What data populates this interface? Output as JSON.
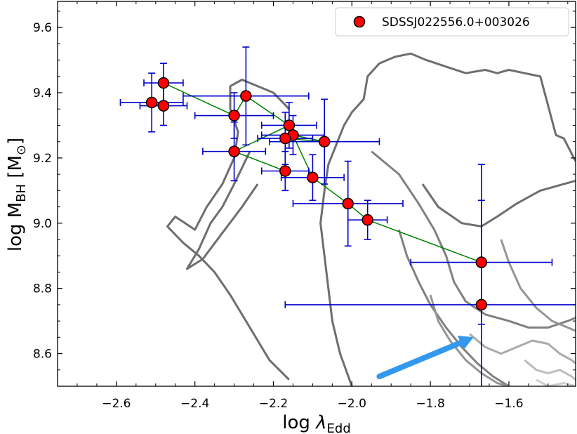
{
  "chart_data": {
    "type": "scatter",
    "xlabel": "log λEdd",
    "ylabel": "log MBH [M⊙]",
    "xlim": [
      -2.75,
      -1.43
    ],
    "ylim": [
      8.5,
      9.68
    ],
    "x_ticks": [
      -2.6,
      -2.4,
      -2.2,
      -2.0,
      -1.8,
      -1.6
    ],
    "x_tick_labels": [
      "−2.6",
      "−2.4",
      "−2.2",
      "−2.0",
      "−1.8",
      "−1.6"
    ],
    "y_ticks": [
      8.6,
      8.8,
      9.0,
      9.2,
      9.4,
      9.6
    ],
    "y_tick_labels": [
      "8.6",
      "8.8",
      "9.0",
      "9.2",
      "9.4",
      "9.6"
    ],
    "legend": {
      "label": "SDSSJ022556.0+003026",
      "position": "top-right"
    },
    "series": [
      {
        "name": "SDSSJ022556.0+003026",
        "marker_color": "#ff0000",
        "errorbar_color": "#0000cc",
        "points": [
          {
            "x": -2.51,
            "y": 9.37,
            "xerr": [
              0.08,
              0.08
            ],
            "yerr": [
              0.09,
              0.09
            ]
          },
          {
            "x": -2.48,
            "y": 9.43,
            "xerr": [
              0.05,
              0.05
            ],
            "yerr": [
              0.06,
              0.06
            ]
          },
          {
            "x": -2.48,
            "y": 9.36,
            "xerr": [
              0.06,
              0.06
            ],
            "yerr": [
              0.06,
              0.06
            ]
          },
          {
            "x": -2.27,
            "y": 9.39,
            "xerr": [
              0.16,
              0.16
            ],
            "yerr": [
              0.15,
              0.15
            ]
          },
          {
            "x": -2.3,
            "y": 9.33,
            "xerr": [
              0.1,
              0.1
            ],
            "yerr": [
              0.07,
              0.07
            ]
          },
          {
            "x": -2.3,
            "y": 9.22,
            "xerr": [
              0.08,
              0.08
            ],
            "yerr": [
              0.09,
              0.09
            ]
          },
          {
            "x": -2.16,
            "y": 9.3,
            "xerr": [
              0.07,
              0.07
            ],
            "yerr": [
              0.07,
              0.07
            ]
          },
          {
            "x": -2.15,
            "y": 9.27,
            "xerr": [
              0.08,
              0.08
            ],
            "yerr": [
              0.06,
              0.06
            ]
          },
          {
            "x": -2.17,
            "y": 9.26,
            "xerr": [
              0.07,
              0.07
            ],
            "yerr": [
              0.08,
              0.08
            ]
          },
          {
            "x": -2.07,
            "y": 9.25,
            "xerr": [
              0.14,
              0.14
            ],
            "yerr": [
              0.13,
              0.13
            ]
          },
          {
            "x": -2.17,
            "y": 9.16,
            "xerr": [
              0.06,
              0.06
            ],
            "yerr": [
              0.06,
              0.06
            ]
          },
          {
            "x": -2.1,
            "y": 9.14,
            "xerr": [
              0.08,
              0.08
            ],
            "yerr": [
              0.07,
              0.07
            ]
          },
          {
            "x": -2.01,
            "y": 9.06,
            "xerr": [
              0.14,
              0.14
            ],
            "yerr": [
              0.13,
              0.13
            ]
          },
          {
            "x": -1.96,
            "y": 9.01,
            "xerr": [
              0.05,
              0.05
            ],
            "yerr": [
              0.06,
              0.06
            ]
          },
          {
            "x": -1.67,
            "y": 8.88,
            "xerr": [
              0.18,
              0.18
            ],
            "yerr": [
              0.19,
              0.19
            ]
          },
          {
            "x": -1.67,
            "y": 8.75,
            "xerr": [
              0.5,
              0.5
            ],
            "yerr": [
              0.43,
              0.43
            ]
          }
        ],
        "connecting_lines": {
          "color": "#008000",
          "order": [
            0,
            2,
            1,
            4,
            3,
            6,
            5,
            10,
            8,
            9,
            7,
            11,
            12,
            13,
            14
          ]
        }
      }
    ],
    "arrow": {
      "from": [
        -1.93,
        8.53
      ],
      "to": [
        -1.69,
        8.65
      ],
      "color": "#3399ee"
    },
    "contours": {
      "colors": [
        "#6e6e6e",
        "#808080",
        "#959595",
        "#aaaaaa",
        "#bdbdbd",
        "#cfcfcf"
      ],
      "polylines": [
        {
          "level": 0,
          "points": [
            [
              -1.43,
              9.19
            ],
            [
              -1.46,
              9.26
            ],
            [
              -1.48,
              9.27
            ],
            [
              -1.5,
              9.36
            ],
            [
              -1.52,
              9.45
            ],
            [
              -1.56,
              9.46
            ],
            [
              -1.6,
              9.47
            ],
            [
              -1.63,
              9.46
            ],
            [
              -1.66,
              9.47
            ],
            [
              -1.71,
              9.46
            ],
            [
              -1.76,
              9.48
            ],
            [
              -1.81,
              9.5
            ],
            [
              -1.85,
              9.52
            ],
            [
              -1.89,
              9.51
            ],
            [
              -1.93,
              9.49
            ],
            [
              -1.96,
              9.45
            ],
            [
              -1.97,
              9.38
            ],
            [
              -2.0,
              9.34
            ],
            [
              -2.02,
              9.3
            ],
            [
              -2.04,
              9.24
            ],
            [
              -2.06,
              9.18
            ],
            [
              -2.07,
              9.1
            ],
            [
              -2.08,
              9.0
            ],
            [
              -2.07,
              8.9
            ],
            [
              -2.06,
              8.8
            ],
            [
              -2.05,
              8.7
            ],
            [
              -2.03,
              8.6
            ],
            [
              -2.0,
              8.5
            ]
          ]
        },
        {
          "level": 0,
          "points": [
            [
              -2.16,
              9.35
            ],
            [
              -2.2,
              9.4
            ],
            [
              -2.24,
              9.42
            ],
            [
              -2.28,
              9.44
            ],
            [
              -2.31,
              9.42
            ],
            [
              -2.31,
              9.35
            ],
            [
              -2.29,
              9.28
            ],
            [
              -2.3,
              9.2
            ],
            [
              -2.33,
              9.12
            ],
            [
              -2.37,
              9.05
            ],
            [
              -2.4,
              8.98
            ],
            [
              -2.45,
              9.02
            ],
            [
              -2.47,
              8.99
            ],
            [
              -2.43,
              8.94
            ],
            [
              -2.39,
              8.9
            ],
            [
              -2.35,
              8.85
            ],
            [
              -2.31,
              8.78
            ],
            [
              -2.26,
              8.68
            ],
            [
              -2.21,
              8.58
            ],
            [
              -2.16,
              8.52
            ]
          ]
        },
        {
          "level": 0,
          "points": [
            [
              -2.26,
              9.22
            ],
            [
              -2.3,
              9.12
            ],
            [
              -2.33,
              9.05
            ],
            [
              -2.36,
              9.0
            ],
            [
              -2.39,
              8.92
            ],
            [
              -2.42,
              8.86
            ],
            [
              -2.38,
              8.89
            ],
            [
              -2.33,
              8.97
            ],
            [
              -2.28,
              9.05
            ],
            [
              -2.24,
              9.12
            ]
          ]
        },
        {
          "level": 0,
          "points": [
            [
              -1.82,
              9.12
            ],
            [
              -1.78,
              9.05
            ],
            [
              -1.72,
              9.0
            ],
            [
              -1.67,
              8.99
            ],
            [
              -1.63,
              9.02
            ],
            [
              -1.58,
              9.06
            ],
            [
              -1.52,
              9.1
            ],
            [
              -1.46,
              9.12
            ],
            [
              -1.43,
              9.13
            ]
          ]
        },
        {
          "level": 1,
          "points": [
            [
              -1.95,
              9.22
            ],
            [
              -1.88,
              9.15
            ],
            [
              -1.83,
              9.06
            ],
            [
              -1.79,
              8.98
            ],
            [
              -1.76,
              8.9
            ],
            [
              -1.74,
              8.82
            ],
            [
              -1.71,
              8.76
            ],
            [
              -1.66,
              8.72
            ],
            [
              -1.6,
              8.7
            ],
            [
              -1.55,
              8.68
            ],
            [
              -1.5,
              8.68
            ],
            [
              -1.45,
              8.7
            ],
            [
              -1.43,
              8.71
            ]
          ]
        },
        {
          "level": 1,
          "points": [
            [
              -1.88,
              8.98
            ],
            [
              -1.86,
              8.9
            ],
            [
              -1.83,
              8.82
            ],
            [
              -1.8,
              8.75
            ],
            [
              -1.76,
              8.68
            ],
            [
              -1.72,
              8.62
            ],
            [
              -1.68,
              8.57
            ],
            [
              -1.64,
              8.53
            ],
            [
              -1.6,
              8.5
            ]
          ]
        },
        {
          "level": 2,
          "points": [
            [
              -1.8,
              8.78
            ],
            [
              -1.78,
              8.7
            ],
            [
              -1.75,
              8.64
            ],
            [
              -1.71,
              8.58
            ],
            [
              -1.67,
              8.54
            ],
            [
              -1.63,
              8.51
            ],
            [
              -1.6,
              8.5
            ]
          ]
        },
        {
          "level": 2,
          "points": [
            [
              -1.62,
              8.95
            ],
            [
              -1.6,
              8.88
            ],
            [
              -1.57,
              8.8
            ],
            [
              -1.53,
              8.74
            ],
            [
              -1.49,
              8.7
            ],
            [
              -1.45,
              8.68
            ],
            [
              -1.43,
              8.67
            ]
          ]
        },
        {
          "level": 3,
          "points": [
            [
              -1.7,
              8.66
            ],
            [
              -1.66,
              8.62
            ],
            [
              -1.62,
              8.6
            ],
            [
              -1.58,
              8.62
            ],
            [
              -1.54,
              8.64
            ],
            [
              -1.5,
              8.63
            ],
            [
              -1.47,
              8.6
            ],
            [
              -1.44,
              8.58
            ],
            [
              -1.43,
              8.57
            ]
          ]
        },
        {
          "level": 4,
          "points": [
            [
              -1.56,
              8.58
            ],
            [
              -1.53,
              8.55
            ],
            [
              -1.5,
              8.54
            ],
            [
              -1.47,
              8.55
            ],
            [
              -1.44,
              8.53
            ],
            [
              -1.43,
              8.52
            ]
          ]
        },
        {
          "level": 5,
          "points": [
            [
              -1.53,
              8.52
            ],
            [
              -1.5,
              8.5
            ],
            [
              -1.46,
              8.51
            ],
            [
              -1.43,
              8.5
            ]
          ]
        }
      ]
    }
  }
}
